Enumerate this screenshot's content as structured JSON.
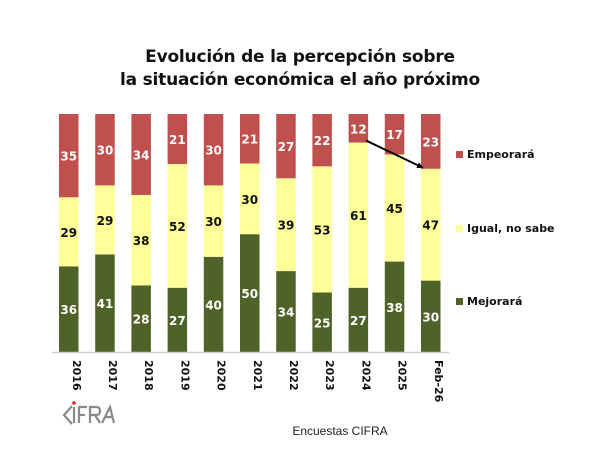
{
  "chart_data": {
    "type": "bar",
    "stacked": true,
    "title": [
      "Evolución de la percepción sobre",
      "la situación económica el año próximo"
    ],
    "categories": [
      "2016",
      "2017",
      "2018",
      "2019",
      "2020",
      "2021",
      "2022",
      "2023",
      "2024",
      "2025",
      "Feb-26"
    ],
    "series": [
      {
        "name": "Mejorará",
        "color": "#4F6228",
        "label_color": "#ffffff",
        "values": [
          36,
          41,
          28,
          27,
          40,
          50,
          34,
          25,
          27,
          38,
          30
        ]
      },
      {
        "name": "Igual, no sabe",
        "color": "#FFFF99",
        "label_color": "#111111",
        "values": [
          29,
          29,
          38,
          52,
          30,
          30,
          39,
          53,
          61,
          45,
          47
        ]
      },
      {
        "name": "Empeorará",
        "color": "#C0504D",
        "label_color": "#ffffff",
        "values": [
          35,
          30,
          34,
          21,
          30,
          21,
          27,
          22,
          12,
          17,
          23
        ]
      }
    ],
    "legend": {
      "placement": "right",
      "order": [
        "Empeorará",
        "Igual, no sabe",
        "Mejorará"
      ]
    },
    "annotation": {
      "type": "arrow",
      "from_category": "2024",
      "to_category": "Feb-26",
      "description": "arrow from 2024 Empeorará top boundary down to Feb-26 boundary"
    },
    "xlabel": "",
    "ylabel": "",
    "grid": false,
    "normalized": "100%"
  },
  "source": "Encuestas CIFRA",
  "logo": "CIFRA"
}
